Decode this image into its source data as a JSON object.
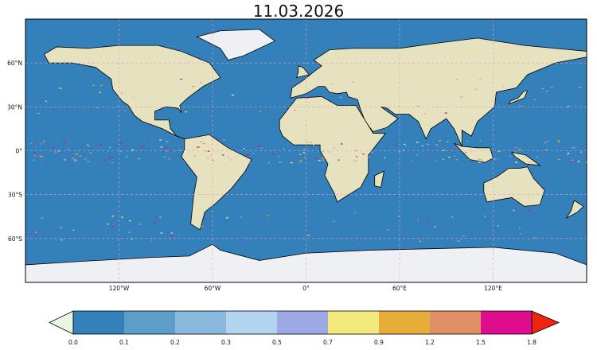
{
  "title": "11.03.2026",
  "map": {
    "projection": "plate-carree",
    "ocean_color": "#3380bb",
    "land_color": "#e6e2bf",
    "ice_color": "#eef0f4",
    "lat_labels": [
      "60°N",
      "30°N",
      "0°",
      "30°S",
      "60°S"
    ],
    "lat_values": [
      60,
      30,
      0,
      -30,
      -60
    ],
    "lon_labels": [
      "120°W",
      "60°W",
      "0°",
      "60°E",
      "120°E"
    ],
    "lon_values": [
      -120,
      -60,
      0,
      60,
      120
    ]
  },
  "colorbar": {
    "ticks": [
      "0.0",
      "0.1",
      "0.2",
      "0.3",
      "0.5",
      "0.7",
      "0.9",
      "1.2",
      "1.5",
      "1.8"
    ],
    "colors": [
      "#3380bb",
      "#5d9dca",
      "#89b9dc",
      "#b2d4ee",
      "#9ea8e4",
      "#f2ea7a",
      "#e6ad3a",
      "#e09066",
      "#e00c8e"
    ],
    "under_color": "#e9f6e3",
    "over_color": "#ee2310",
    "extend": "both"
  }
}
